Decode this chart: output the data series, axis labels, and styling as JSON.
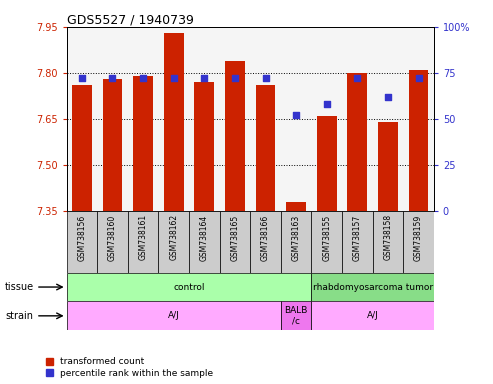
{
  "title": "GDS5527 / 1940739",
  "samples": [
    "GSM738156",
    "GSM738160",
    "GSM738161",
    "GSM738162",
    "GSM738164",
    "GSM738165",
    "GSM738166",
    "GSM738163",
    "GSM738155",
    "GSM738157",
    "GSM738158",
    "GSM738159"
  ],
  "bar_values": [
    7.76,
    7.78,
    7.79,
    7.93,
    7.77,
    7.84,
    7.76,
    7.38,
    7.66,
    7.8,
    7.64,
    7.81
  ],
  "dot_values": [
    72,
    72,
    72,
    72,
    72,
    72,
    72,
    52,
    58,
    72,
    62,
    72
  ],
  "ymin": 7.35,
  "ymax": 7.95,
  "y2min": 0,
  "y2max": 100,
  "yticks": [
    7.35,
    7.5,
    7.65,
    7.8,
    7.95
  ],
  "y2ticks": [
    0,
    25,
    50,
    75,
    100
  ],
  "bar_color": "#cc2200",
  "dot_color": "#3333cc",
  "sample_box_color": "#cccccc",
  "tissue_groups": [
    {
      "label": "control",
      "start": 0,
      "end": 8,
      "color": "#aaffaa"
    },
    {
      "label": "rhabdomyosarcoma tumor",
      "start": 8,
      "end": 12,
      "color": "#88dd88"
    }
  ],
  "strain_groups": [
    {
      "label": "A/J",
      "start": 0,
      "end": 7,
      "color": "#ffaaff"
    },
    {
      "label": "BALB\n/c",
      "start": 7,
      "end": 8,
      "color": "#ee77ee"
    },
    {
      "label": "A/J",
      "start": 8,
      "end": 12,
      "color": "#ffaaff"
    }
  ],
  "legend_items": [
    {
      "label": "transformed count",
      "color": "#cc2200"
    },
    {
      "label": "percentile rank within the sample",
      "color": "#3333cc"
    }
  ],
  "axis_color_left": "#cc2200",
  "axis_color_right": "#3333cc",
  "grid_ticks": [
    7.5,
    7.65,
    7.8
  ],
  "plot_bg": "#f5f5f5"
}
